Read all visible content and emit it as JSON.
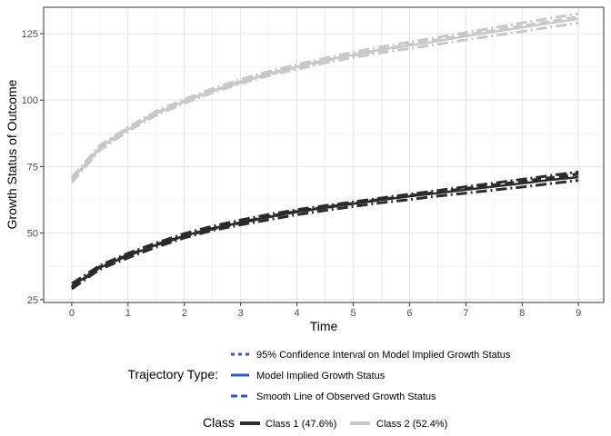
{
  "chart_data": {
    "type": "line",
    "xlabel": "Time",
    "ylabel": "Growth Status of Outcome",
    "xlim": [
      -0.5,
      9.45
    ],
    "ylim": [
      23.9,
      134.9
    ],
    "x_ticks": [
      0,
      1,
      2,
      3,
      4,
      5,
      6,
      7,
      8,
      9
    ],
    "y_ticks": [
      25,
      50,
      75,
      100,
      125
    ],
    "grid": true,
    "x": [
      0,
      0.5,
      1,
      1.5,
      2,
      2.5,
      3,
      3.5,
      4,
      4.5,
      5,
      5.5,
      6,
      6.5,
      7,
      7.5,
      8,
      8.5,
      9
    ],
    "series": [
      {
        "name": "Class 1 (47.6%)",
        "color": "#2b2b2b",
        "model_implied": [
          30,
          37,
          41.5,
          45.5,
          49,
          51.8,
          54,
          56,
          58,
          59.5,
          61,
          62.5,
          63.8,
          65,
          66.3,
          67.5,
          68.7,
          70,
          71
        ],
        "smooth_observed": [
          29.5,
          37.3,
          41.7,
          45.6,
          48.9,
          51.6,
          53.9,
          56.2,
          58.1,
          59.6,
          61.2,
          62.6,
          64,
          65.3,
          66.7,
          68,
          69.4,
          70.7,
          72.2
        ],
        "ci_upper": [
          31,
          37.8,
          42.4,
          46.3,
          49.8,
          52.6,
          54.9,
          57,
          58.8,
          60.3,
          61.7,
          63.2,
          64.6,
          66,
          67.4,
          68.8,
          70.2,
          71.6,
          73
        ],
        "ci_lower": [
          29,
          36.4,
          40.7,
          44.7,
          48.2,
          51,
          53.1,
          55,
          56.9,
          58.5,
          60,
          61.4,
          62.6,
          63.9,
          65,
          66.2,
          67.3,
          68.6,
          69.8
        ]
      },
      {
        "name": "Class 2 (52.4%)",
        "color": "#c8c8c8",
        "model_implied": [
          70,
          82,
          89,
          95,
          99.5,
          103.5,
          107,
          110,
          112.5,
          115,
          117,
          119,
          120.5,
          122.2,
          124,
          125.7,
          127.3,
          129,
          130.5
        ],
        "smooth_observed": [
          69.8,
          82.2,
          89.3,
          95.2,
          99.6,
          103.5,
          106.8,
          109.8,
          112.4,
          114.8,
          116.9,
          118.9,
          120.8,
          122.6,
          124.4,
          126.1,
          127.8,
          129.5,
          131.2
        ],
        "ci_upper": [
          71,
          83,
          89.8,
          95.8,
          100.3,
          104.3,
          107.8,
          110.8,
          113.4,
          115.8,
          118,
          120,
          121.8,
          123.6,
          125.4,
          127.2,
          129,
          130.8,
          132.5
        ],
        "ci_lower": [
          69,
          81.2,
          88.3,
          94.3,
          98.8,
          102.8,
          106.2,
          109.2,
          111.6,
          114,
          116,
          117.8,
          119.4,
          121,
          122.6,
          124.2,
          125.8,
          127.4,
          129
        ]
      }
    ],
    "legend": {
      "placement": "bottom",
      "trajectory_title": "Trajectory Type:",
      "trajectory_items": [
        {
          "label": "95% Confidence Interval on Model Implied Growth Status",
          "style": "dotted"
        },
        {
          "label": "Model Implied Growth Status",
          "style": "solid"
        },
        {
          "label": "Smooth Line of Observed Growth Status",
          "style": "dashed"
        }
      ],
      "trajectory_key_color": "#2d56d4",
      "class_title": "Class",
      "class_items": [
        {
          "label": "Class 1 (47.6%)",
          "color": "#2b2b2b"
        },
        {
          "label": "Class 2 (52.4%)",
          "color": "#c8c8c8"
        }
      ]
    }
  }
}
